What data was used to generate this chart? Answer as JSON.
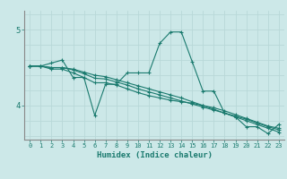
{
  "xlabel": "Humidex (Indice chaleur)",
  "ylabel": "",
  "bg_color": "#cce8e8",
  "grid_color": "#b8d8d8",
  "line_color": "#1a7a6e",
  "xlim": [
    -0.5,
    23.5
  ],
  "ylim": [
    3.55,
    5.25
  ],
  "yticks": [
    4,
    5
  ],
  "xticks": [
    0,
    1,
    2,
    3,
    4,
    5,
    6,
    7,
    8,
    9,
    10,
    11,
    12,
    13,
    14,
    15,
    16,
    17,
    18,
    19,
    20,
    21,
    22,
    23
  ],
  "lines": [
    {
      "x": [
        0,
        1,
        2,
        3,
        4,
        5,
        6,
        7,
        8,
        9,
        10,
        11,
        12,
        13,
        14,
        15,
        16,
        17,
        18,
        19,
        20,
        21,
        22,
        23
      ],
      "y": [
        4.52,
        4.52,
        4.56,
        4.6,
        4.37,
        4.37,
        3.87,
        4.28,
        4.28,
        4.43,
        4.43,
        4.43,
        4.82,
        4.97,
        4.97,
        4.58,
        4.19,
        4.19,
        3.9,
        3.85,
        3.72,
        3.72,
        3.63,
        3.75
      ]
    },
    {
      "x": [
        0,
        1,
        2,
        3,
        4,
        5,
        6,
        7,
        8,
        9,
        10,
        11,
        12,
        13,
        14,
        15,
        16,
        17,
        18,
        19,
        20,
        21,
        22,
        23
      ],
      "y": [
        4.52,
        4.52,
        4.48,
        4.48,
        4.43,
        4.37,
        4.3,
        4.3,
        4.27,
        4.22,
        4.17,
        4.13,
        4.1,
        4.07,
        4.05,
        4.03,
        4.0,
        3.97,
        3.93,
        3.88,
        3.83,
        3.78,
        3.73,
        3.7
      ]
    },
    {
      "x": [
        0,
        1,
        2,
        3,
        4,
        5,
        6,
        7,
        8,
        9,
        10,
        11,
        12,
        13,
        14,
        15,
        16,
        17,
        18,
        19,
        20,
        21,
        22,
        23
      ],
      "y": [
        4.52,
        4.52,
        4.5,
        4.5,
        4.48,
        4.44,
        4.4,
        4.38,
        4.34,
        4.3,
        4.26,
        4.22,
        4.18,
        4.14,
        4.1,
        4.05,
        4.0,
        3.95,
        3.9,
        3.85,
        3.8,
        3.75,
        3.7,
        3.65
      ]
    },
    {
      "x": [
        0,
        1,
        2,
        3,
        4,
        5,
        6,
        7,
        8,
        9,
        10,
        11,
        12,
        13,
        14,
        15,
        16,
        17,
        18,
        19,
        20,
        21,
        22,
        23
      ],
      "y": [
        4.52,
        4.52,
        4.5,
        4.5,
        4.47,
        4.42,
        4.36,
        4.35,
        4.31,
        4.27,
        4.22,
        4.18,
        4.14,
        4.1,
        4.06,
        4.02,
        3.98,
        3.94,
        3.9,
        3.86,
        3.82,
        3.77,
        3.72,
        3.68
      ]
    }
  ]
}
